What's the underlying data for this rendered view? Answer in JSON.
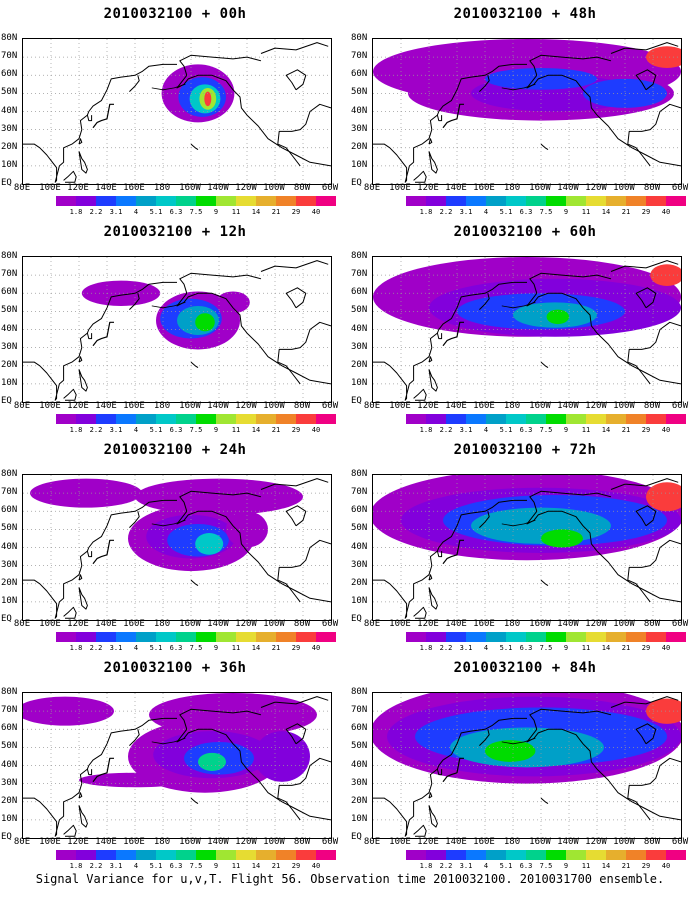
{
  "caption": "Signal Variance for u,v,T. Flight 56. Observation time 2010032100. 2010031700 ensemble.",
  "lat_labels": [
    "80N",
    "70N",
    "60N",
    "50N",
    "40N",
    "30N",
    "20N",
    "10N",
    "EQ"
  ],
  "lon_labels": [
    "80E",
    "100E",
    "120E",
    "140E",
    "160E",
    "180",
    "160W",
    "140W",
    "120W",
    "100W",
    "80W",
    "60W"
  ],
  "colorbar": {
    "levels": [
      "1.8",
      "2.2",
      "3.1",
      "4",
      "5.1",
      "6.3",
      "7.5",
      "9",
      "11",
      "14",
      "21",
      "29",
      "40"
    ],
    "colors": [
      "#a000c8",
      "#8200dc",
      "#1e3cff",
      "#0a78ff",
      "#00a0c8",
      "#00c8c8",
      "#00d28c",
      "#00dc00",
      "#a0e632",
      "#e6dc32",
      "#e6af2d",
      "#f08228",
      "#fa3c3c",
      "#f00082"
    ]
  },
  "panels": [
    {
      "title": "2010032100 + 00h",
      "intensity": 0
    },
    {
      "title": "2010032100 + 12h",
      "intensity": 1
    },
    {
      "title": "2010032100 + 24h",
      "intensity": 2
    },
    {
      "title": "2010032100 + 36h",
      "intensity": 3
    },
    {
      "title": "2010032100 + 48h",
      "intensity": 4
    },
    {
      "title": "2010032100 + 60h",
      "intensity": 5
    },
    {
      "title": "2010032100 + 72h",
      "intensity": 6
    },
    {
      "title": "2010032100 + 84h",
      "intensity": 7
    }
  ]
}
